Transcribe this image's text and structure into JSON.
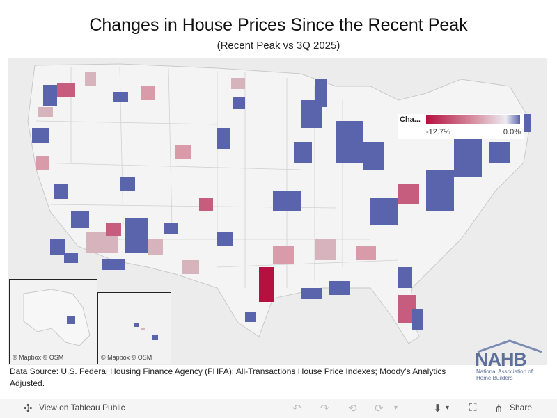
{
  "title": "Changes in House Prices Since the Recent Peak",
  "subtitle": "(Recent Peak vs 3Q 2025)",
  "legend": {
    "title": "Cha...",
    "min_label": "-12.7%",
    "max_label": "0.0%",
    "colors": {
      "low": "#b5103f",
      "mid": "#d99aaa",
      "high": "#ececf1",
      "none": "#5a64ad"
    }
  },
  "insets": {
    "alaska_credit": "© Mapbox  © OSM",
    "hawaii_credit": "© Mapbox  © OSM"
  },
  "source": "Data Source: U.S. Federal Housing Finance Agency (FHFA): All-Transactions House Price Indexes; Moody’s Analytics Adjusted.",
  "logo": {
    "word": "NAHB",
    "subtitle": "National Association of Home Builders"
  },
  "toolbar": {
    "view_label": "View on Tableau Public",
    "share_label": "Share",
    "icons": [
      "tableau-icon",
      "undo-icon",
      "redo-icon",
      "revert-icon",
      "refresh-icon",
      "download-icon",
      "fullscreen-icon",
      "share-icon"
    ]
  }
}
